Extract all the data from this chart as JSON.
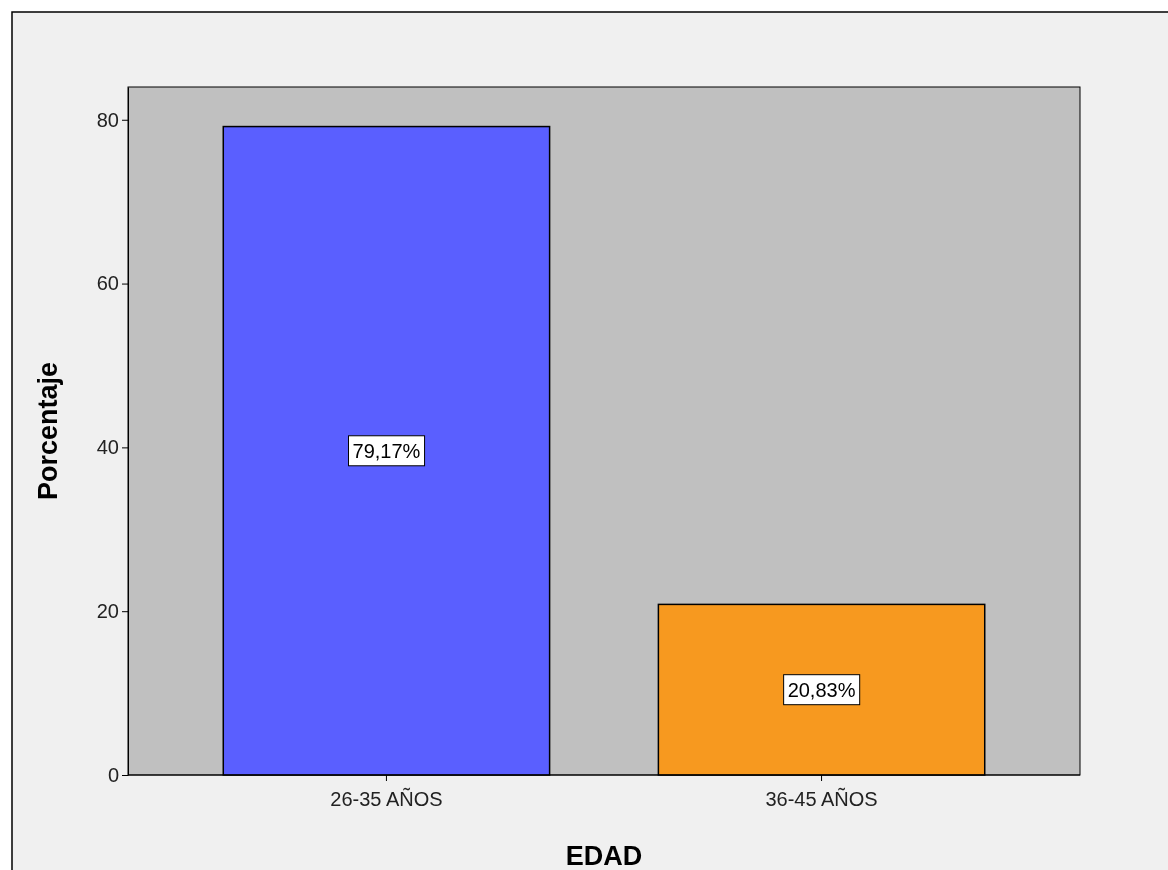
{
  "chart_data": {
    "type": "bar",
    "xlabel": "EDAD",
    "ylabel": "Porcentaje",
    "categories": [
      "26-35 AÑOS",
      "36-45 AÑOS"
    ],
    "values": [
      79.17,
      20.83
    ],
    "colors": [
      "#5a5fff",
      "#f7991f"
    ],
    "value_labels": [
      "79,17%",
      "20,83%"
    ],
    "ylim": [
      0,
      84
    ],
    "yticks": [
      0,
      20,
      40,
      60,
      80
    ],
    "grid": false
  }
}
